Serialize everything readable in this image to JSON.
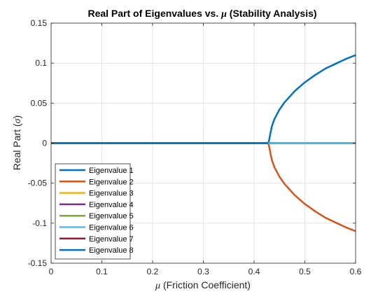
{
  "chart_data": {
    "type": "line",
    "title_prefix": "Real Part of Eigenvalues vs. ",
    "title_symbol": "μ",
    "title_suffix": " (Stability Analysis)",
    "xlabel_symbol": "μ",
    "xlabel_text": " (Friction Coefficient)",
    "ylabel_prefix": "Real Part (",
    "ylabel_symbol": "σ",
    "ylabel_suffix": ")",
    "xlim": [
      0,
      0.6
    ],
    "ylim": [
      -0.15,
      0.15
    ],
    "xticks": [
      0,
      0.1,
      0.2,
      0.3,
      0.4,
      0.5,
      0.6
    ],
    "xtick_labels": [
      "0",
      "0.1",
      "0.2",
      "0.3",
      "0.4",
      "0.5",
      "0.6"
    ],
    "yticks": [
      -0.15,
      -0.1,
      -0.05,
      0,
      0.05,
      0.1,
      0.15
    ],
    "ytick_labels": [
      "-0.15",
      "-0.1",
      "-0.05",
      "0",
      "0.05",
      "0.1",
      "0.15"
    ],
    "grid": true,
    "legend_position": "bottom-left",
    "x": [
      0,
      0.1,
      0.2,
      0.3,
      0.4,
      0.428,
      0.43,
      0.432,
      0.435,
      0.44,
      0.45,
      0.46,
      0.48,
      0.5,
      0.52,
      0.54,
      0.56,
      0.58,
      0.6
    ],
    "series": [
      {
        "name": "Eigenvalue 1",
        "color": "#0072BD",
        "values": [
          0,
          0,
          0,
          0,
          0,
          0,
          0.005,
          0.012,
          0.021,
          0.03,
          0.042,
          0.051,
          0.065,
          0.076,
          0.085,
          0.093,
          0.099,
          0.105,
          0.11
        ]
      },
      {
        "name": "Eigenvalue 2",
        "color": "#D95319",
        "values": [
          0,
          0,
          0,
          0,
          0,
          0,
          -0.005,
          -0.012,
          -0.021,
          -0.03,
          -0.042,
          -0.051,
          -0.065,
          -0.076,
          -0.085,
          -0.093,
          -0.099,
          -0.105,
          -0.11
        ]
      },
      {
        "name": "Eigenvalue 3",
        "color": "#EDB120",
        "values": [
          0,
          0,
          0,
          0,
          0,
          0,
          0,
          0,
          0,
          0,
          0,
          0,
          0,
          0,
          0,
          0,
          0,
          0,
          0
        ]
      },
      {
        "name": "Eigenvalue 4",
        "color": "#7E2F8E",
        "values": [
          0,
          0,
          0,
          0,
          0,
          0,
          0,
          0,
          0,
          0,
          0,
          0,
          0,
          0,
          0,
          0,
          0,
          0,
          0
        ]
      },
      {
        "name": "Eigenvalue 5",
        "color": "#77AC30",
        "values": [
          0,
          0,
          0,
          0,
          0,
          0,
          0,
          0,
          0,
          0,
          0,
          0,
          0,
          0,
          0,
          0,
          0,
          0,
          0
        ]
      },
      {
        "name": "Eigenvalue 6",
        "color": "#4DBEEE",
        "values": [
          0,
          0,
          0,
          0,
          0,
          0,
          0,
          0,
          0,
          0,
          0,
          0,
          0,
          0,
          0,
          0,
          0,
          0,
          0
        ]
      },
      {
        "name": "Eigenvalue 7",
        "color": "#A2142F",
        "values": [
          0,
          0,
          0,
          0,
          0,
          0,
          0,
          0,
          0,
          0,
          0,
          0,
          0,
          0,
          0,
          0,
          0,
          0,
          0
        ]
      },
      {
        "name": "Eigenvalue 8",
        "color": "#0072BD",
        "values": [
          0,
          0,
          0,
          0,
          0,
          0,
          0,
          0,
          0,
          0,
          0,
          0,
          0,
          0,
          0,
          0,
          0,
          0,
          0
        ]
      }
    ]
  }
}
